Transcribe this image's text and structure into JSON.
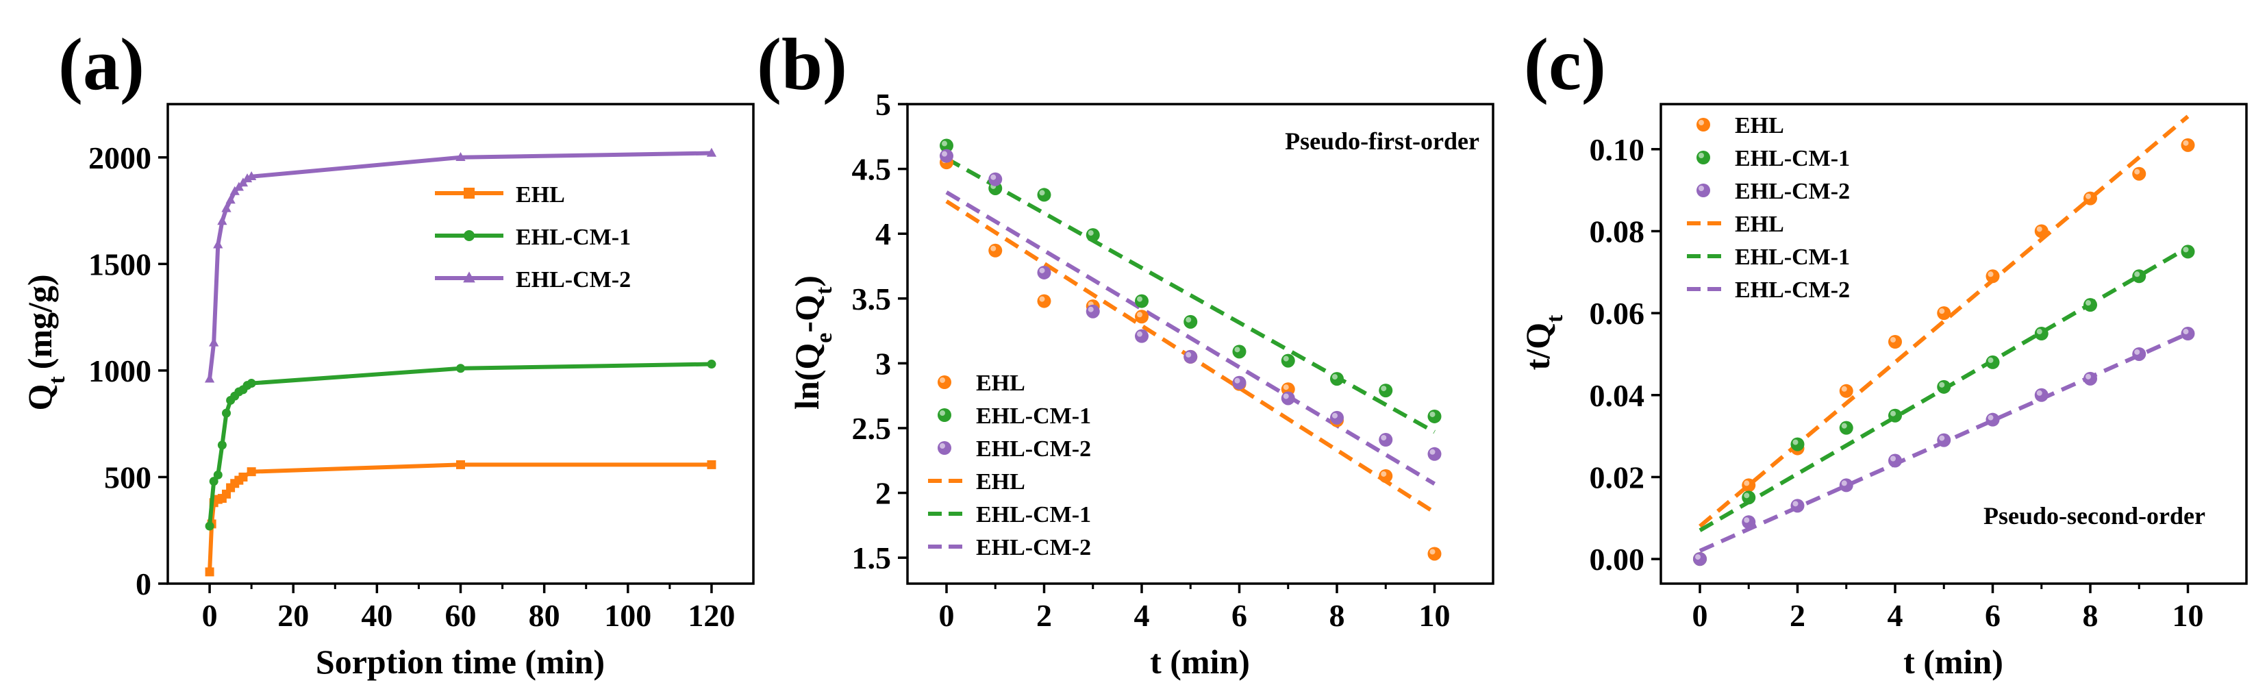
{
  "colors": {
    "EHL": "#ff7f0e",
    "EHL-CM-1": "#2ca02c",
    "EHL-CM-2": "#9467bd",
    "axis": "#000000"
  },
  "chart_data": [
    {
      "panel": "(a)",
      "type": "line",
      "xlabel": "Sorption time (min)",
      "ylabel": "Q",
      "ylabel_sub": "t",
      "ylabel_unit": "(mg/g)",
      "xlim": [
        -10,
        130
      ],
      "ylim": [
        0,
        2250
      ],
      "xticks": [
        0,
        20,
        40,
        60,
        80,
        100,
        120
      ],
      "yticks": [
        0,
        500,
        1000,
        1500,
        2000
      ],
      "legend_position": "top-right",
      "series": [
        {
          "name": "EHL",
          "color": "#ff7f0e",
          "marker": "square",
          "x": [
            0,
            0.5,
            1,
            2,
            3,
            4,
            5,
            6,
            7,
            8,
            10,
            60,
            120
          ],
          "y": [
            55,
            280,
            380,
            395,
            400,
            420,
            450,
            470,
            485,
            500,
            525,
            558,
            558
          ]
        },
        {
          "name": "EHL-CM-1",
          "color": "#2ca02c",
          "marker": "circle",
          "x": [
            0,
            1,
            2,
            3,
            4,
            5,
            6,
            7,
            8,
            9,
            10,
            60,
            120
          ],
          "y": [
            270,
            480,
            510,
            650,
            800,
            860,
            880,
            900,
            910,
            930,
            940,
            1010,
            1030
          ]
        },
        {
          "name": "EHL-CM-2",
          "color": "#9467bd",
          "marker": "triangle",
          "x": [
            0,
            1,
            2,
            3,
            4,
            5,
            6,
            7,
            8,
            9,
            10,
            60,
            120
          ],
          "y": [
            960,
            1130,
            1590,
            1700,
            1760,
            1800,
            1840,
            1860,
            1880,
            1900,
            1910,
            2000,
            2020
          ]
        }
      ]
    },
    {
      "panel": "(b)",
      "type": "scatter",
      "xlabel": "t (min)",
      "ylabel": "ln(Q",
      "ylabel_sub1": "e",
      "ylabel_mid": "-Q",
      "ylabel_sub2": "t",
      "ylabel_end": ")",
      "annotation": "Pseudo-first-order",
      "annotation_position": "top-right",
      "xlim": [
        -0.8,
        11.2
      ],
      "ylim": [
        1.3,
        5.0
      ],
      "xticks": [
        0,
        2,
        4,
        6,
        8,
        10
      ],
      "yticks": [
        1.5,
        2.0,
        2.5,
        3.0,
        3.5,
        4.0,
        4.5,
        5.0
      ],
      "legend_position": "bottom-left",
      "series": [
        {
          "name": "EHL",
          "color": "#ff7f0e",
          "x": [
            0,
            1,
            2,
            3,
            4,
            5,
            6,
            7,
            8,
            9,
            10
          ],
          "y": [
            4.55,
            3.87,
            3.48,
            3.44,
            3.36,
            3.05,
            2.84,
            2.8,
            2.56,
            2.13,
            1.53
          ]
        },
        {
          "name": "EHL-CM-1",
          "color": "#2ca02c",
          "x": [
            0,
            1,
            2,
            3,
            4,
            5,
            6,
            7,
            8,
            9,
            10
          ],
          "y": [
            4.68,
            4.35,
            4.3,
            3.99,
            3.48,
            3.32,
            3.09,
            3.02,
            2.88,
            2.79,
            2.59
          ]
        },
        {
          "name": "EHL-CM-2",
          "color": "#9467bd",
          "x": [
            0,
            1,
            2,
            3,
            4,
            5,
            6,
            7,
            8,
            9,
            10
          ],
          "y": [
            4.6,
            4.42,
            3.7,
            3.4,
            3.21,
            3.05,
            2.85,
            2.73,
            2.58,
            2.41,
            2.3
          ]
        }
      ],
      "fits": [
        {
          "name": "EHL",
          "color": "#ff7f0e",
          "x": [
            0,
            10
          ],
          "y": [
            4.25,
            1.85
          ]
        },
        {
          "name": "EHL-CM-1",
          "color": "#2ca02c",
          "x": [
            0,
            10
          ],
          "y": [
            4.58,
            2.47
          ]
        },
        {
          "name": "EHL-CM-2",
          "color": "#9467bd",
          "x": [
            0,
            10
          ],
          "y": [
            4.32,
            2.07
          ]
        }
      ]
    },
    {
      "panel": "(c)",
      "type": "scatter",
      "xlabel": "t (min)",
      "ylabel": "t/Q",
      "ylabel_sub": "t",
      "annotation": "Pseudo-second-order",
      "annotation_position": "bottom-right",
      "xlim": [
        -0.8,
        11.2
      ],
      "ylim": [
        -0.006,
        0.111
      ],
      "xticks": [
        0,
        2,
        4,
        6,
        8,
        10
      ],
      "yticks": [
        0.0,
        0.02,
        0.04,
        0.06,
        0.08,
        0.1
      ],
      "ytick_labels": [
        "0.00",
        "0.02",
        "0.04",
        "0.06",
        "0.08",
        "0.10"
      ],
      "legend_position": "top-left",
      "series": [
        {
          "name": "EHL",
          "color": "#ff7f0e",
          "x": [
            0,
            1,
            2,
            3,
            4,
            5,
            6,
            7,
            8,
            9,
            10
          ],
          "y": [
            0.0,
            0.018,
            0.027,
            0.041,
            0.053,
            0.06,
            0.069,
            0.08,
            0.088,
            0.094,
            0.101
          ]
        },
        {
          "name": "EHL-CM-1",
          "color": "#2ca02c",
          "x": [
            0,
            1,
            2,
            3,
            4,
            5,
            6,
            7,
            8,
            9,
            10
          ],
          "y": [
            0.0,
            0.015,
            0.028,
            0.032,
            0.035,
            0.042,
            0.048,
            0.055,
            0.062,
            0.069,
            0.075
          ]
        },
        {
          "name": "EHL-CM-2",
          "color": "#9467bd",
          "x": [
            0,
            1,
            2,
            3,
            4,
            5,
            6,
            7,
            8,
            9,
            10
          ],
          "y": [
            0.0,
            0.009,
            0.013,
            0.018,
            0.024,
            0.029,
            0.034,
            0.04,
            0.044,
            0.05,
            0.055
          ]
        }
      ],
      "fits": [
        {
          "name": "EHL",
          "color": "#ff7f0e",
          "x": [
            0,
            10
          ],
          "y": [
            0.008,
            0.108
          ]
        },
        {
          "name": "EHL-CM-1",
          "color": "#2ca02c",
          "x": [
            0,
            10
          ],
          "y": [
            0.007,
            0.076
          ]
        },
        {
          "name": "EHL-CM-2",
          "color": "#9467bd",
          "x": [
            0,
            10
          ],
          "y": [
            0.002,
            0.055
          ]
        }
      ]
    }
  ]
}
